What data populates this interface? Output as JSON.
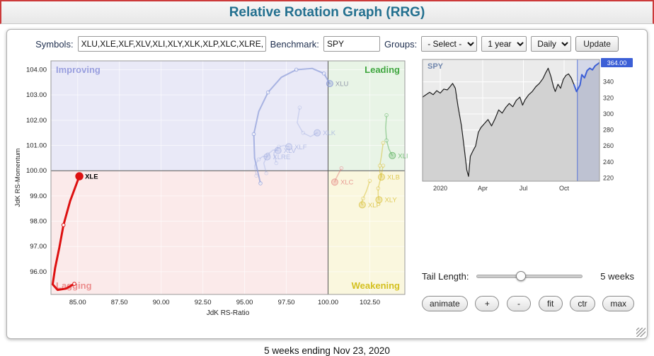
{
  "header": {
    "title": "Relative Rotation Graph (RRG)"
  },
  "toolbar": {
    "symbols_label": "Symbols:",
    "symbols_value": "XLU,XLE,XLF,XLV,XLI,XLY,XLK,XLP,XLC,XLRE,XL",
    "benchmark_label": "Benchmark:",
    "benchmark_value": "SPY",
    "groups_label": "Groups:",
    "groups_selected": "- Select -",
    "period_selected": "1 year",
    "frequency_selected": "Daily",
    "update_label": "Update"
  },
  "controls": {
    "tail_length_label": "Tail Length:",
    "tail_length_value": "5 weeks",
    "tail_slider_value": "5",
    "buttons": [
      {
        "label": "animate"
      },
      {
        "label": "+"
      },
      {
        "label": "-"
      },
      {
        "label": "fit"
      },
      {
        "label": "ctr"
      },
      {
        "label": "max"
      }
    ]
  },
  "footer": {
    "caption": "5 weeks ending Nov 23, 2020"
  },
  "chart_data": [
    {
      "type": "scatter",
      "id": "rrg",
      "xlabel": "JdK RS-Ratio",
      "ylabel": "JdK RS-Momentum",
      "xlim": [
        83.4,
        104.6
      ],
      "ylim": [
        95.1,
        104.35
      ],
      "xticks": [
        85,
        87.5,
        90,
        92.5,
        95,
        97.5,
        100,
        102.5
      ],
      "yticks": [
        96,
        97,
        98,
        99,
        100,
        101,
        102,
        103,
        104
      ],
      "center": [
        100,
        100
      ],
      "benchmark": "SPY",
      "quadrants": {
        "top_left": {
          "label": "Improving",
          "bg": "#e9e9f7",
          "label_color": "#9096dc"
        },
        "top_right": {
          "label": "Leading",
          "bg": "#e8f4e6",
          "label_color": "#3fa63f"
        },
        "bottom_left": {
          "label": "Lagging",
          "bg": "#fbeaea",
          "label_color": "#ec8f8f"
        },
        "bottom_right": {
          "label": "Weakening",
          "bg": "#faf7de",
          "label_color": "#d4c020"
        }
      },
      "series": [
        {
          "name": "XLE",
          "color": "#dd1111",
          "label_color": "#000000",
          "width": 3,
          "opacity": 1,
          "selected": true,
          "dots": [
            0,
            6
          ],
          "points": [
            [
              84.8,
              95.52
            ],
            [
              84.3,
              95.33
            ],
            [
              83.8,
              95.28
            ],
            [
              83.5,
              95.5
            ],
            [
              83.65,
              96.15
            ],
            [
              83.9,
              96.95
            ],
            [
              84.15,
              97.85
            ],
            [
              84.55,
              98.8
            ],
            [
              85.1,
              99.78
            ]
          ]
        },
        {
          "name": "XLU",
          "color": "#8b9bd9",
          "label_color": "#9097a8",
          "width": 2,
          "opacity": 0.7,
          "selected": false,
          "dots": [
            0,
            2,
            4,
            6,
            8
          ],
          "points": [
            [
              95.95,
              99.5
            ],
            [
              95.6,
              100.5
            ],
            [
              95.55,
              101.45
            ],
            [
              95.85,
              102.35
            ],
            [
              96.4,
              103.1
            ],
            [
              97.2,
              103.7
            ],
            [
              98.1,
              104.0
            ],
            [
              99.05,
              104.05
            ],
            [
              99.75,
              103.85
            ],
            [
              100.1,
              103.45
            ]
          ]
        },
        {
          "name": "XLK",
          "color": "#8b9bd9",
          "width": 1.5,
          "opacity": 0.3,
          "selected": false,
          "dots": [
            0,
            2
          ],
          "points": [
            [
              98.3,
              102.5
            ],
            [
              98.15,
              101.9
            ],
            [
              98.5,
              101.5
            ],
            [
              98.95,
              101.35
            ],
            [
              99.35,
              101.5
            ]
          ]
        },
        {
          "name": "XLF",
          "color": "#8b9bd9",
          "width": 1.5,
          "opacity": 0.3,
          "selected": false,
          "dots": [
            0,
            2
          ],
          "points": [
            [
              96.9,
              100.3
            ],
            [
              96.75,
              100.7
            ],
            [
              97.05,
              100.95
            ],
            [
              97.35,
              101.0
            ],
            [
              97.65,
              100.95
            ]
          ]
        },
        {
          "name": "XLV",
          "color": "#8b9bd9",
          "width": 1.5,
          "opacity": 0.3,
          "selected": false,
          "dots": [
            0,
            2
          ],
          "points": [
            [
              96.3,
              99.9
            ],
            [
              96.15,
              100.3
            ],
            [
              96.4,
              100.65
            ],
            [
              96.7,
              100.82
            ],
            [
              97.0,
              100.8
            ]
          ]
        },
        {
          "name": "XLRE",
          "color": "#8b9bd9",
          "width": 1.5,
          "opacity": 0.3,
          "selected": false,
          "dots": [
            0,
            2
          ],
          "points": [
            [
              95.7,
              99.8
            ],
            [
              95.6,
              100.2
            ],
            [
              95.85,
              100.45
            ],
            [
              96.1,
              100.57
            ],
            [
              96.35,
              100.55
            ]
          ]
        },
        {
          "name": "XLI",
          "color": "#49a84c",
          "width": 1.5,
          "opacity": 0.45,
          "selected": false,
          "dots": [
            0,
            2
          ],
          "points": [
            [
              103.5,
              102.2
            ],
            [
              103.45,
              101.7
            ],
            [
              103.5,
              101.2
            ],
            [
              103.65,
              100.85
            ],
            [
              103.85,
              100.6
            ]
          ]
        },
        {
          "name": "XLB",
          "color": "#d3b71f",
          "width": 1.5,
          "opacity": 0.45,
          "selected": false,
          "dots": [
            0,
            2
          ],
          "points": [
            [
              103.3,
              101.1
            ],
            [
              103.2,
              100.6
            ],
            [
              103.1,
              100.2
            ],
            [
              103.1,
              99.95
            ],
            [
              103.2,
              99.75
            ]
          ]
        },
        {
          "name": "XLY",
          "color": "#d3b71f",
          "width": 1.5,
          "opacity": 0.45,
          "selected": false,
          "dots": [
            0,
            2
          ],
          "points": [
            [
              103.3,
              100.2
            ],
            [
              103.15,
              99.7
            ],
            [
              103.0,
              99.3
            ],
            [
              103.0,
              99.05
            ],
            [
              103.05,
              98.85
            ]
          ]
        },
        {
          "name": "XLP",
          "color": "#d3b71f",
          "width": 1.5,
          "opacity": 0.45,
          "selected": false,
          "dots": [
            0,
            2
          ],
          "points": [
            [
              102.5,
              99.6
            ],
            [
              102.3,
              99.2
            ],
            [
              102.1,
              98.9
            ],
            [
              102.0,
              98.72
            ],
            [
              102.05,
              98.65
            ]
          ]
        },
        {
          "name": "XLC",
          "color": "#e07575",
          "width": 1.5,
          "opacity": 0.45,
          "selected": false,
          "dots": [
            0
          ],
          "points": [
            [
              100.8,
              100.1
            ],
            [
              100.6,
              99.85
            ],
            [
              100.45,
              99.65
            ],
            [
              100.4,
              99.55
            ]
          ]
        }
      ]
    },
    {
      "type": "area",
      "id": "spy",
      "title": "SPY",
      "ylim": [
        216,
        368
      ],
      "yticks": [
        220,
        240,
        260,
        280,
        300,
        320,
        340
      ],
      "last_price_label": "364.00",
      "xticks": [
        {
          "label": "2020",
          "pos": 0.1
        },
        {
          "label": "Apr",
          "pos": 0.34
        },
        {
          "label": "Jul",
          "pos": 0.57
        },
        {
          "label": "Oct",
          "pos": 0.8
        }
      ],
      "highlight_start": 0.875,
      "line_color": "#1c1c1c",
      "area_color": "#d2d2d2",
      "highlight_color": "#3c5fd6",
      "points": [
        [
          0,
          321
        ],
        [
          0.02,
          324
        ],
        [
          0.04,
          327
        ],
        [
          0.06,
          324
        ],
        [
          0.08,
          329
        ],
        [
          0.1,
          326
        ],
        [
          0.12,
          331
        ],
        [
          0.14,
          330
        ],
        [
          0.155,
          334
        ],
        [
          0.17,
          338
        ],
        [
          0.185,
          332
        ],
        [
          0.2,
          310
        ],
        [
          0.22,
          285
        ],
        [
          0.235,
          258
        ],
        [
          0.25,
          230
        ],
        [
          0.26,
          222
        ],
        [
          0.27,
          247
        ],
        [
          0.285,
          254
        ],
        [
          0.3,
          260
        ],
        [
          0.315,
          277
        ],
        [
          0.33,
          283
        ],
        [
          0.35,
          288
        ],
        [
          0.37,
          293
        ],
        [
          0.39,
          285
        ],
        [
          0.41,
          294
        ],
        [
          0.43,
          305
        ],
        [
          0.45,
          301
        ],
        [
          0.47,
          308
        ],
        [
          0.49,
          313
        ],
        [
          0.51,
          309
        ],
        [
          0.53,
          317
        ],
        [
          0.55,
          321
        ],
        [
          0.565,
          311
        ],
        [
          0.58,
          318
        ],
        [
          0.6,
          324
        ],
        [
          0.62,
          328
        ],
        [
          0.64,
          334
        ],
        [
          0.66,
          338
        ],
        [
          0.68,
          344
        ],
        [
          0.695,
          351
        ],
        [
          0.71,
          357
        ],
        [
          0.725,
          347
        ],
        [
          0.74,
          334
        ],
        [
          0.75,
          328
        ],
        [
          0.765,
          337
        ],
        [
          0.78,
          332
        ],
        [
          0.795,
          343
        ],
        [
          0.81,
          348
        ],
        [
          0.825,
          350
        ],
        [
          0.84,
          345
        ],
        [
          0.855,
          337
        ],
        [
          0.87,
          328
        ],
        [
          0.875,
          330
        ],
        [
          0.89,
          336
        ],
        [
          0.9,
          349
        ],
        [
          0.915,
          345
        ],
        [
          0.93,
          354
        ],
        [
          0.945,
          357
        ],
        [
          0.96,
          355
        ],
        [
          0.975,
          360
        ],
        [
          1.0,
          364
        ]
      ]
    }
  ]
}
